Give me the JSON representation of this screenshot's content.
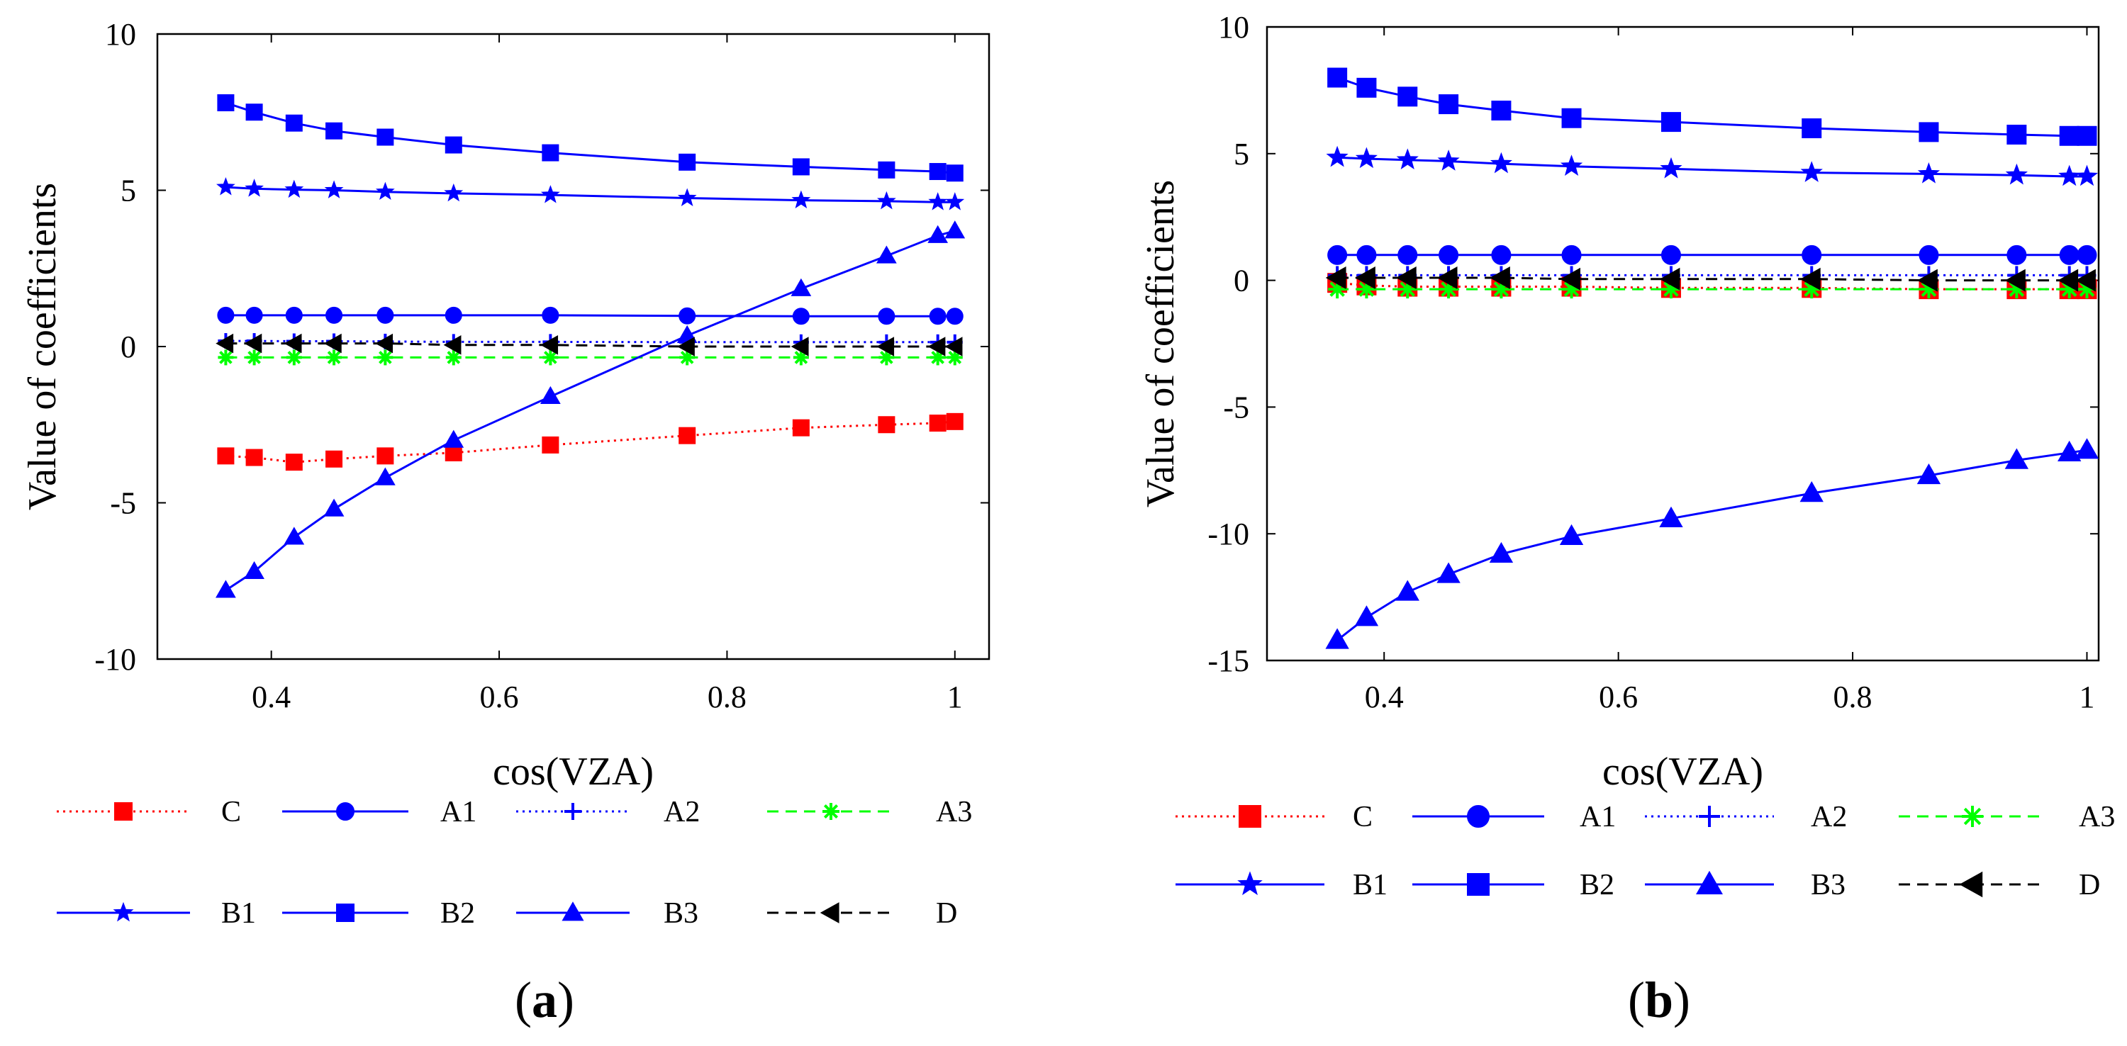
{
  "chart_data": [
    {
      "type": "line",
      "panel_label": "a",
      "panel_open": "(",
      "panel_close": ")",
      "xlabel": "cos(VZA)",
      "ylabel": "Value of coefficients",
      "xlim": [
        0.3,
        1.03
      ],
      "ylim": [
        -10,
        10
      ],
      "xticks": [
        0.4,
        0.6,
        0.8,
        1
      ],
      "xtick_labels": [
        "0.4",
        "0.6",
        "0.8",
        "1"
      ],
      "yticks": [
        -10,
        -5,
        0,
        5,
        10
      ],
      "ytick_labels": [
        "-10",
        "-5",
        "0",
        "5",
        "10"
      ],
      "x": [
        0.36,
        0.385,
        0.42,
        0.455,
        0.5,
        0.56,
        0.645,
        0.765,
        0.865,
        0.94,
        0.985,
        1.0
      ],
      "series": [
        {
          "name": "C",
          "color": "#ff0000",
          "line_color": "#ff0000",
          "dash": "3,6",
          "marker": "square",
          "values": [
            -3.5,
            -3.55,
            -3.7,
            -3.6,
            -3.5,
            -3.4,
            -3.15,
            -2.85,
            -2.6,
            -2.5,
            -2.45,
            -2.4
          ]
        },
        {
          "name": "A1",
          "color": "#0000ff",
          "line_color": "#0000ff",
          "dash": "",
          "marker": "circle",
          "values": [
            1.0,
            1.0,
            1.0,
            1.0,
            1.0,
            1.0,
            1.0,
            0.98,
            0.97,
            0.97,
            0.97,
            0.97
          ]
        },
        {
          "name": "A2",
          "color": "#0000ff",
          "line_color": "#0000ff",
          "dash": "3,6",
          "marker": "plus",
          "values": [
            0.18,
            0.18,
            0.17,
            0.17,
            0.16,
            0.15,
            0.15,
            0.14,
            0.14,
            0.14,
            0.14,
            0.14
          ]
        },
        {
          "name": "A3",
          "color": "#00ff00",
          "line_color": "#00ff00",
          "dash": "16,10",
          "marker": "asterisk",
          "values": [
            -0.35,
            -0.35,
            -0.35,
            -0.35,
            -0.35,
            -0.35,
            -0.35,
            -0.35,
            -0.35,
            -0.35,
            -0.35,
            -0.35
          ]
        },
        {
          "name": "B1",
          "color": "#0000ff",
          "line_color": "#0000ff",
          "dash": "",
          "marker": "star",
          "values": [
            5.1,
            5.05,
            5.02,
            5.0,
            4.95,
            4.9,
            4.85,
            4.75,
            4.68,
            4.65,
            4.62,
            4.62
          ]
        },
        {
          "name": "B2",
          "color": "#0000ff",
          "line_color": "#0000ff",
          "dash": "",
          "marker": "square",
          "values": [
            7.8,
            7.5,
            7.15,
            6.9,
            6.7,
            6.45,
            6.2,
            5.9,
            5.75,
            5.65,
            5.6,
            5.55
          ]
        },
        {
          "name": "B3",
          "color": "#0000ff",
          "line_color": "#0000ff",
          "dash": "",
          "marker": "triangle",
          "values": [
            -7.8,
            -7.2,
            -6.1,
            -5.2,
            -4.2,
            -3.0,
            -1.6,
            0.35,
            1.85,
            2.9,
            3.55,
            3.7
          ]
        },
        {
          "name": "D",
          "color": "#000000",
          "line_color": "#000000",
          "dash": "16,10",
          "marker": "triangle-left",
          "values": [
            0.1,
            0.1,
            0.1,
            0.1,
            0.1,
            0.05,
            0.05,
            0.0,
            0.0,
            0.0,
            0.0,
            0.0
          ]
        }
      ]
    },
    {
      "type": "line",
      "panel_label": "b",
      "panel_open": "(",
      "panel_close": ")",
      "xlabel": "cos(VZA)",
      "ylabel": "Value of coefficients",
      "xlim": [
        0.3,
        1.01
      ],
      "ylim": [
        -15,
        10
      ],
      "xticks": [
        0.4,
        0.6,
        0.8,
        1
      ],
      "xtick_labels": [
        "0.4",
        "0.6",
        "0.8",
        "1"
      ],
      "yticks": [
        -15,
        -10,
        -5,
        0,
        5,
        10
      ],
      "ytick_labels": [
        "-15",
        "-10",
        "-5",
        "0",
        "5",
        "10"
      ],
      "x": [
        0.36,
        0.385,
        0.42,
        0.455,
        0.5,
        0.56,
        0.645,
        0.765,
        0.865,
        0.94,
        0.985,
        1.0
      ],
      "series": [
        {
          "name": "C",
          "color": "#ff0000",
          "line_color": "#ff0000",
          "dash": "3,6",
          "marker": "square",
          "values": [
            -0.1,
            -0.2,
            -0.25,
            -0.25,
            -0.25,
            -0.25,
            -0.3,
            -0.3,
            -0.35,
            -0.35,
            -0.35,
            -0.35
          ]
        },
        {
          "name": "A1",
          "color": "#0000ff",
          "line_color": "#0000ff",
          "dash": "",
          "marker": "circle",
          "values": [
            1.0,
            1.0,
            1.0,
            1.0,
            1.0,
            1.0,
            1.0,
            1.0,
            1.0,
            1.0,
            1.0,
            1.0
          ]
        },
        {
          "name": "A2",
          "color": "#0000ff",
          "line_color": "#0000ff",
          "dash": "3,6",
          "marker": "plus",
          "values": [
            0.2,
            0.2,
            0.2,
            0.2,
            0.2,
            0.2,
            0.2,
            0.2,
            0.2,
            0.2,
            0.2,
            0.2
          ]
        },
        {
          "name": "A3",
          "color": "#00ff00",
          "line_color": "#00ff00",
          "dash": "16,10",
          "marker": "asterisk",
          "values": [
            -0.35,
            -0.35,
            -0.35,
            -0.35,
            -0.35,
            -0.35,
            -0.35,
            -0.35,
            -0.35,
            -0.35,
            -0.35,
            -0.35
          ]
        },
        {
          "name": "B1",
          "color": "#0000ff",
          "line_color": "#0000ff",
          "dash": "",
          "marker": "star",
          "values": [
            4.85,
            4.8,
            4.75,
            4.7,
            4.6,
            4.5,
            4.4,
            4.25,
            4.2,
            4.15,
            4.1,
            4.1
          ]
        },
        {
          "name": "B2",
          "color": "#0000ff",
          "line_color": "#0000ff",
          "dash": "",
          "marker": "square",
          "values": [
            8.0,
            7.6,
            7.25,
            6.95,
            6.7,
            6.4,
            6.25,
            6.0,
            5.85,
            5.75,
            5.7,
            5.7
          ]
        },
        {
          "name": "B3",
          "color": "#0000ff",
          "line_color": "#0000ff",
          "dash": "",
          "marker": "triangle",
          "values": [
            -14.2,
            -13.3,
            -12.3,
            -11.6,
            -10.8,
            -10.1,
            -9.4,
            -8.4,
            -7.7,
            -7.1,
            -6.8,
            -6.7
          ]
        },
        {
          "name": "D",
          "color": "#000000",
          "line_color": "#000000",
          "dash": "16,10",
          "marker": "triangle-left",
          "values": [
            0.1,
            0.1,
            0.1,
            0.1,
            0.1,
            0.05,
            0.05,
            0.05,
            0.0,
            0.0,
            0.0,
            0.0
          ]
        }
      ]
    }
  ]
}
